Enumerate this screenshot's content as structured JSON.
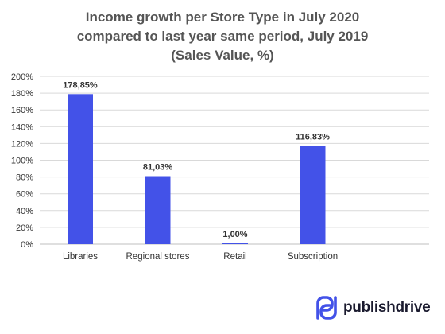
{
  "chart_data": {
    "type": "bar",
    "title_lines": [
      "Income growth per Store Type in July 2020",
      "compared to last year same period, July 2019",
      "(Sales Value, %)"
    ],
    "categories": [
      "Libraries",
      "Regional stores",
      "Retail",
      "Subscription"
    ],
    "values": [
      178.85,
      81.03,
      1.0,
      116.83
    ],
    "data_labels": [
      "178,85%",
      "81,03%",
      "1,00%",
      "116,83%"
    ],
    "ylim": [
      0,
      200
    ],
    "y_ticks": [
      0,
      20,
      40,
      60,
      80,
      100,
      120,
      140,
      160,
      180,
      200
    ],
    "y_tick_labels": [
      "0%",
      "20%",
      "40%",
      "60%",
      "80%",
      "100%",
      "120%",
      "140%",
      "160%",
      "180%",
      "200%"
    ],
    "xlabel": "",
    "ylabel": "",
    "grid": true,
    "legend": "none",
    "colors": {
      "bar": "#4352E8",
      "grid": "#d9d9d9",
      "axis": "#bfbfbf"
    }
  },
  "brand": {
    "name": "publishdrive",
    "logo_icon": "publishdrive-logo-icon",
    "logo_color": "#4352E8"
  }
}
